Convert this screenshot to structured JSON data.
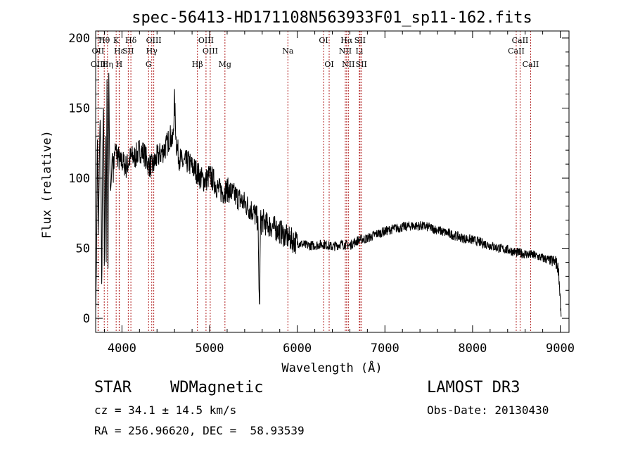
{
  "chart_data": {
    "type": "line",
    "title": "spec-56413-HD171108N563933F01_sp11-162.fits",
    "xlabel": "Wavelength (Å)",
    "ylabel": "Flux (relative)",
    "xlim": [
      3700,
      9100
    ],
    "ylim": [
      -10,
      205
    ],
    "x_ticks": [
      4000,
      5000,
      6000,
      7000,
      8000,
      9000
    ],
    "y_ticks": [
      0,
      50,
      100,
      150,
      200
    ],
    "grid": false,
    "legend": "none",
    "series": [
      {
        "name": "spectrum",
        "x": [
          3700,
          3710,
          3720,
          3730,
          3740,
          3750,
          3760,
          3770,
          3780,
          3790,
          3800,
          3810,
          3820,
          3830,
          3840,
          3850,
          3860,
          3870,
          3880,
          3890,
          3900,
          3920,
          3940,
          3960,
          3980,
          4000,
          4050,
          4100,
          4150,
          4200,
          4250,
          4300,
          4350,
          4400,
          4450,
          4500,
          4550,
          4580,
          4600,
          4620,
          4650,
          4700,
          4750,
          4800,
          4850,
          4900,
          4950,
          5000,
          5050,
          5100,
          5150,
          5200,
          5300,
          5400,
          5500,
          5550,
          5570,
          5580,
          5590,
          5600,
          5650,
          5700,
          5800,
          5900,
          6000,
          6100,
          6200,
          6300,
          6400,
          6500,
          6600,
          6700,
          6800,
          6900,
          7000,
          7100,
          7200,
          7300,
          7400,
          7500,
          7600,
          7700,
          7800,
          7900,
          8000,
          8100,
          8200,
          8300,
          8400,
          8500,
          8600,
          8700,
          8800,
          8900,
          8950,
          8980,
          9000,
          9010
        ],
        "y": [
          5,
          40,
          135,
          60,
          100,
          145,
          110,
          15,
          120,
          150,
          25,
          140,
          40,
          185,
          20,
          175,
          110,
          90,
          100,
          120,
          105,
          120,
          118,
          115,
          110,
          112,
          108,
          115,
          115,
          120,
          118,
          110,
          108,
          115,
          118,
          122,
          130,
          125,
          155,
          125,
          115,
          110,
          112,
          108,
          105,
          100,
          98,
          102,
          98,
          92,
          90,
          92,
          87,
          82,
          76,
          70,
          2,
          70,
          68,
          70,
          67,
          66,
          62,
          57,
          54,
          52,
          52,
          53,
          51,
          53,
          52,
          56,
          57,
          60,
          62,
          64,
          65,
          66,
          66,
          65,
          63,
          61,
          59,
          57,
          56,
          54,
          52,
          50,
          49,
          47,
          46,
          45,
          43,
          41,
          40,
          35,
          15,
          0
        ]
      }
    ],
    "spectral_lines": [
      {
        "label": "Hθ",
        "wavelength": 3798,
        "row": 1
      },
      {
        "label": "OII",
        "wavelength": 3727,
        "row": 2
      },
      {
        "label": "OIII",
        "wavelength": 3730,
        "row": 3
      },
      {
        "label": "Hη",
        "wavelength": 3835,
        "row": 3
      },
      {
        "label": "K",
        "wavelength": 3934,
        "row": 1
      },
      {
        "label": "Hε",
        "wavelength": 3970,
        "row": 2
      },
      {
        "label": "H",
        "wavelength": 3968,
        "row": 3
      },
      {
        "label": "SII",
        "wavelength": 4072,
        "row": 2
      },
      {
        "label": "Hδ",
        "wavelength": 4102,
        "row": 1
      },
      {
        "label": "OIII",
        "wavelength": 4363,
        "row": 1
      },
      {
        "label": "Hγ",
        "wavelength": 4340,
        "row": 2
      },
      {
        "label": "G",
        "wavelength": 4304,
        "row": 3
      },
      {
        "label": "Hβ",
        "wavelength": 4861,
        "row": 3
      },
      {
        "label": "OIII",
        "wavelength": 4959,
        "row": 1
      },
      {
        "label": "OIII",
        "wavelength": 5007,
        "row": 2
      },
      {
        "label": "Mg",
        "wavelength": 5175,
        "row": 3
      },
      {
        "label": "Na",
        "wavelength": 5893,
        "row": 2
      },
      {
        "label": "OI",
        "wavelength": 6300,
        "row": 1
      },
      {
        "label": "OI",
        "wavelength": 6364,
        "row": 3
      },
      {
        "label": "Hα",
        "wavelength": 6563,
        "row": 1
      },
      {
        "label": "NII",
        "wavelength": 6548,
        "row": 2
      },
      {
        "label": "NII",
        "wavelength": 6583,
        "row": 3
      },
      {
        "label": "SII",
        "wavelength": 6716,
        "row": 1
      },
      {
        "label": "Li",
        "wavelength": 6708,
        "row": 2
      },
      {
        "label": "SII",
        "wavelength": 6731,
        "row": 3
      },
      {
        "label": "CaII",
        "wavelength": 8542,
        "row": 1
      },
      {
        "label": "CaII",
        "wavelength": 8498,
        "row": 2
      },
      {
        "label": "CaII",
        "wavelength": 8662,
        "row": 3
      }
    ]
  },
  "info": {
    "object_class": "STAR",
    "subclass": "WDMagnetic",
    "survey": "LAMOST DR3",
    "redshift": "cz = 34.1 ± 14.5 km/s",
    "obs_date": "Obs-Date: 20130430",
    "coords": "RA = 256.96620, DEC =  58.93539"
  },
  "colors": {
    "line": "#000000",
    "marker": "#b22222",
    "axis": "#000000"
  }
}
